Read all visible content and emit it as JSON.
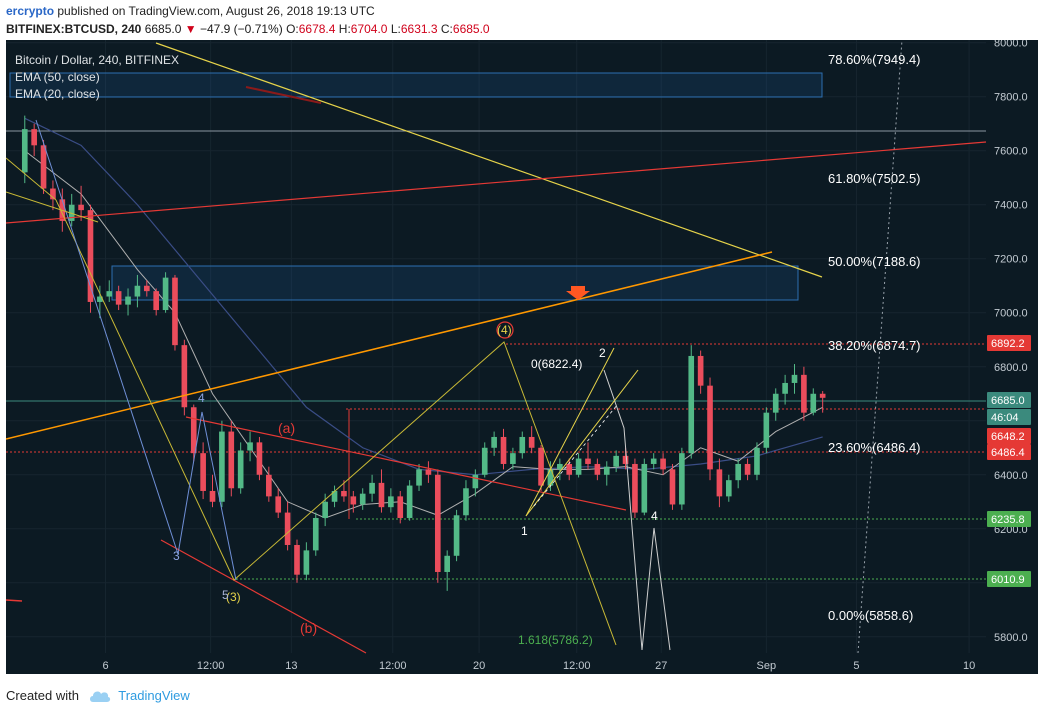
{
  "header": {
    "author": "ercrypto",
    "published": "published on TradingView.com, August 26, 2018 19:13 UTC",
    "symbol": "BITFINEX:BTCUSD, 240",
    "last": "6685.0",
    "change": "−47.9 (−0.71%)",
    "o_label": "O:",
    "o_value": "6678.4",
    "h_label": "H:",
    "h_value": "6704.0",
    "l_label": "L:",
    "l_value": "6631.3",
    "c_label": "C:",
    "c_value": "6685.0"
  },
  "legend": {
    "title": "Bitcoin / Dollar, 240, BITFINEX",
    "ema50": "EMA (50, close)",
    "ema20": "EMA (20, close)"
  },
  "footer": {
    "created_with": "Created with",
    "brand": "TradingView"
  },
  "colors": {
    "background": "#0c1a23",
    "grid": "#16252f",
    "up": "#53b987",
    "down": "#eb4d5c",
    "fib_line": "#ffffff",
    "trend_red": "#e53935",
    "trend_yellow": "#e6d34a",
    "trend_orange": "#ff9800",
    "ema50": "#3a4d86",
    "ema20": "#b0b0b0",
    "label_green": "#4caf50",
    "label_red": "#e53935",
    "label_teal": "#3b8a7d"
  },
  "chart_data": {
    "type": "candlestick",
    "title": "Bitcoin / Dollar, 240, BITFINEX",
    "y_axis": {
      "ticks": [
        5800,
        6000,
        6200,
        6400,
        6600,
        6800,
        7000,
        7200,
        7400,
        7600,
        7800,
        8000
      ],
      "tick_labels": [
        "5800.0",
        "6000.0",
        "6200.0",
        "6400.0",
        "6600.0",
        "6800.0",
        "7000.0",
        "7200.0",
        "7400.0",
        "7600.0",
        "7800.0",
        "8000.0"
      ],
      "ylim": [
        5740,
        8010
      ]
    },
    "x_axis": {
      "ticks": [
        "6",
        "12:00",
        "13",
        "12:00",
        "20",
        "12:00",
        "27",
        "Sep",
        "5",
        "10"
      ],
      "tick_pos": [
        4.3,
        9.9,
        14.2,
        19.6,
        24.2,
        29.4,
        33.9,
        39.5,
        44.3,
        50.3
      ],
      "xlim": [
        -1.0,
        51.2
      ]
    },
    "candles": [
      [
        0,
        7520,
        7730,
        7480,
        7680
      ],
      [
        0.5,
        7680,
        7700,
        7580,
        7620
      ],
      [
        1,
        7620,
        7640,
        7440,
        7460
      ],
      [
        1.5,
        7460,
        7490,
        7380,
        7420
      ],
      [
        2,
        7420,
        7460,
        7300,
        7340
      ],
      [
        2.5,
        7340,
        7440,
        7320,
        7400
      ],
      [
        3,
        7400,
        7470,
        7340,
        7380
      ],
      [
        3.5,
        7380,
        7400,
        7000,
        7040
      ],
      [
        4,
        7040,
        7100,
        6980,
        7060
      ],
      [
        4.5,
        7060,
        7120,
        7040,
        7080
      ],
      [
        5,
        7080,
        7100,
        7010,
        7030
      ],
      [
        5.5,
        7030,
        7090,
        6990,
        7060
      ],
      [
        6,
        7060,
        7140,
        7020,
        7100
      ],
      [
        6.5,
        7100,
        7120,
        7060,
        7080
      ],
      [
        7,
        7080,
        7090,
        6990,
        7010
      ],
      [
        7.5,
        7010,
        7150,
        7000,
        7130
      ],
      [
        8,
        7130,
        7140,
        6860,
        6880
      ],
      [
        8.5,
        6880,
        6900,
        6620,
        6650
      ],
      [
        9,
        6650,
        6660,
        6450,
        6480
      ],
      [
        9.5,
        6480,
        6520,
        6310,
        6340
      ],
      [
        10,
        6340,
        6400,
        6280,
        6300
      ],
      [
        10.5,
        6300,
        6600,
        6280,
        6560
      ],
      [
        11,
        6560,
        6600,
        6320,
        6350
      ],
      [
        11.5,
        6350,
        6520,
        6330,
        6490
      ],
      [
        12,
        6490,
        6560,
        6450,
        6520
      ],
      [
        12.5,
        6520,
        6540,
        6380,
        6400
      ],
      [
        13,
        6400,
        6430,
        6300,
        6320
      ],
      [
        13.5,
        6320,
        6350,
        6240,
        6260
      ],
      [
        14,
        6260,
        6300,
        6120,
        6140
      ],
      [
        14.5,
        6140,
        6160,
        6000,
        6030
      ],
      [
        15,
        6030,
        6150,
        6010,
        6120
      ],
      [
        15.5,
        6120,
        6260,
        6100,
        6240
      ],
      [
        16,
        6240,
        6330,
        6210,
        6300
      ],
      [
        16.5,
        6300,
        6360,
        6280,
        6340
      ],
      [
        17,
        6340,
        6380,
        6300,
        6320
      ],
      [
        17.5,
        6320,
        6340,
        6260,
        6290
      ],
      [
        18,
        6290,
        6350,
        6270,
        6330
      ],
      [
        18.5,
        6330,
        6400,
        6300,
        6370
      ],
      [
        19,
        6370,
        6420,
        6260,
        6280
      ],
      [
        19.5,
        6280,
        6350,
        6260,
        6320
      ],
      [
        20,
        6320,
        6340,
        6220,
        6240
      ],
      [
        20.5,
        6240,
        6380,
        6230,
        6360
      ],
      [
        21,
        6360,
        6440,
        6340,
        6420
      ],
      [
        21.5,
        6420,
        6450,
        6370,
        6400
      ],
      [
        22,
        6400,
        6420,
        6000,
        6040
      ],
      [
        22.5,
        6040,
        6120,
        5970,
        6100
      ],
      [
        23,
        6100,
        6270,
        6080,
        6250
      ],
      [
        23.5,
        6250,
        6380,
        6230,
        6350
      ],
      [
        24,
        6350,
        6420,
        6320,
        6400
      ],
      [
        24.5,
        6400,
        6520,
        6390,
        6500
      ],
      [
        25,
        6500,
        6560,
        6470,
        6540
      ],
      [
        25.5,
        6540,
        6570,
        6420,
        6440
      ],
      [
        26,
        6440,
        6500,
        6420,
        6480
      ],
      [
        26.5,
        6480,
        6560,
        6460,
        6540
      ],
      [
        27,
        6540,
        6580,
        6480,
        6500
      ],
      [
        27.5,
        6500,
        6510,
        6340,
        6360
      ],
      [
        28,
        6360,
        6450,
        6340,
        6420
      ],
      [
        28.5,
        6420,
        6460,
        6380,
        6440
      ],
      [
        29,
        6440,
        6460,
        6380,
        6400
      ],
      [
        29.5,
        6400,
        6480,
        6390,
        6460
      ],
      [
        30,
        6460,
        6520,
        6420,
        6440
      ],
      [
        30.5,
        6440,
        6460,
        6380,
        6400
      ],
      [
        31,
        6400,
        6450,
        6360,
        6430
      ],
      [
        31.5,
        6430,
        6490,
        6410,
        6470
      ],
      [
        32,
        6470,
        6500,
        6420,
        6440
      ],
      [
        32.5,
        6440,
        6460,
        6240,
        6260
      ],
      [
        33,
        6260,
        6460,
        6250,
        6440
      ],
      [
        33.5,
        6440,
        6480,
        6420,
        6460
      ],
      [
        34,
        6460,
        6480,
        6400,
        6420
      ],
      [
        34.5,
        6420,
        6440,
        6270,
        6290
      ],
      [
        35,
        6290,
        6500,
        6270,
        6480
      ],
      [
        35.5,
        6480,
        6880,
        6460,
        6840
      ],
      [
        36,
        6840,
        6860,
        6700,
        6730
      ],
      [
        36.5,
        6730,
        6760,
        6380,
        6420
      ],
      [
        37,
        6420,
        6460,
        6280,
        6320
      ],
      [
        37.5,
        6320,
        6400,
        6300,
        6380
      ],
      [
        38,
        6380,
        6460,
        6350,
        6440
      ],
      [
        38.5,
        6440,
        6460,
        6380,
        6400
      ],
      [
        39,
        6400,
        6520,
        6380,
        6500
      ],
      [
        39.5,
        6500,
        6650,
        6480,
        6630
      ],
      [
        40,
        6630,
        6720,
        6600,
        6700
      ],
      [
        40.5,
        6700,
        6770,
        6660,
        6740
      ],
      [
        41,
        6740,
        6810,
        6700,
        6770
      ],
      [
        41.5,
        6770,
        6800,
        6600,
        6630
      ],
      [
        42,
        6630,
        6720,
        6620,
        6700
      ],
      [
        42.5,
        6700,
        6710,
        6630,
        6685
      ]
    ],
    "ema20": [
      [
        0,
        7600
      ],
      [
        3,
        7440
      ],
      [
        6,
        7160
      ],
      [
        8,
        7000
      ],
      [
        10,
        6700
      ],
      [
        12,
        6500
      ],
      [
        14,
        6300
      ],
      [
        16,
        6240
      ],
      [
        18,
        6290
      ],
      [
        20,
        6300
      ],
      [
        22,
        6250
      ],
      [
        24,
        6330
      ],
      [
        26,
        6430
      ],
      [
        28,
        6420
      ],
      [
        30,
        6420
      ],
      [
        32,
        6430
      ],
      [
        34,
        6400
      ],
      [
        36,
        6500
      ],
      [
        38,
        6450
      ],
      [
        40,
        6560
      ],
      [
        42.5,
        6650
      ]
    ],
    "ema50": [
      [
        0,
        7720
      ],
      [
        3,
        7620
      ],
      [
        6,
        7400
      ],
      [
        9,
        7150
      ],
      [
        12,
        6900
      ],
      [
        15,
        6650
      ],
      [
        18,
        6500
      ],
      [
        21,
        6420
      ],
      [
        24,
        6400
      ],
      [
        27,
        6420
      ],
      [
        30,
        6430
      ],
      [
        33,
        6420
      ],
      [
        36,
        6440
      ],
      [
        39,
        6470
      ],
      [
        42.5,
        6540
      ]
    ],
    "fib_levels": [
      {
        "label": "78.60%(7949.4)",
        "price": 7949.4
      },
      {
        "label": "61.80%(7502.5)",
        "price": 7502.5
      },
      {
        "label": "50.00%(7188.6)",
        "price": 7188.6
      },
      {
        "label": "38.20%(6874.7)",
        "price": 6874.7
      },
      {
        "label": "23.60%(6486.4)",
        "price": 6486.4
      },
      {
        "label": "0.00%(5858.6)",
        "price": 5858.6
      }
    ],
    "price_labels": [
      {
        "text": "6892.2",
        "price": 6892.2,
        "color": "red"
      },
      {
        "text": "6685.0",
        "price": 6685.0,
        "color": "teal"
      },
      {
        "text": "46:04",
        "price": 6613,
        "color": "teal"
      },
      {
        "text": "6648.2",
        "price": 6553,
        "color": "red"
      },
      {
        "text": "6486.4",
        "price": 6486.4,
        "color": "red"
      },
      {
        "text": "6235.8",
        "price": 6235.8,
        "color": "green"
      },
      {
        "text": "6010.9",
        "price": 6010.9,
        "color": "green"
      }
    ],
    "annotations": {
      "wave_a": "(a)",
      "wave_b": "(b)",
      "wave_3": "(3)",
      "wave_4": "(4)",
      "n1": "1",
      "n2": "2",
      "n3": "3",
      "n4a": "4",
      "n4b": "4",
      "n5": "5",
      "zero_label": "0(6822.4)",
      "ext_label": "1.618(5786.2)"
    }
  }
}
